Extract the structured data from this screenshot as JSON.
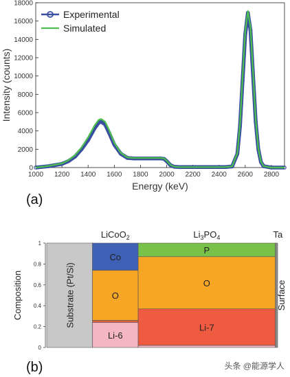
{
  "panel_labels": {
    "a": "(a)",
    "b": "(b)"
  },
  "watermark": "头条 @能源学人",
  "chart_data": [
    {
      "type": "line",
      "xlabel": "Energy (keV)",
      "ylabel": "Intensity (counts)",
      "xlim": [
        1000,
        2900
      ],
      "ylim": [
        0,
        18000
      ],
      "xticks": [
        1000,
        1200,
        1400,
        1600,
        1800,
        2000,
        2200,
        2400,
        2600,
        2800
      ],
      "yticks": [
        0,
        2000,
        4000,
        6000,
        8000,
        10000,
        12000,
        14000,
        16000,
        18000
      ],
      "legend_position": "top-left",
      "series": [
        {
          "name": "Experimental",
          "color": "#3a4fa0",
          "marker": "circle",
          "x": [
            1000,
            1100,
            1200,
            1250,
            1300,
            1350,
            1400,
            1450,
            1480,
            1500,
            1530,
            1560,
            1600,
            1650,
            1700,
            1750,
            1800,
            1850,
            1900,
            1950,
            1980,
            2000,
            2030,
            2060,
            2100,
            2200,
            2300,
            2400,
            2450,
            2500,
            2540,
            2560,
            2580,
            2600,
            2620,
            2640,
            2660,
            2680,
            2700,
            2720,
            2740,
            2800,
            2900
          ],
          "y": [
            0,
            150,
            400,
            700,
            1200,
            2000,
            3000,
            4300,
            4900,
            5000,
            4700,
            3800,
            2500,
            1500,
            1050,
            1000,
            1000,
            1000,
            1000,
            1000,
            950,
            700,
            250,
            80,
            50,
            50,
            50,
            50,
            60,
            120,
            1500,
            4500,
            9500,
            14500,
            16900,
            15000,
            10000,
            5000,
            2000,
            600,
            150,
            0,
            0
          ]
        },
        {
          "name": "Simulated",
          "color": "#4cc04c",
          "x": [
            1000,
            1100,
            1200,
            1250,
            1300,
            1350,
            1400,
            1450,
            1480,
            1500,
            1530,
            1560,
            1600,
            1650,
            1700,
            1750,
            1800,
            1850,
            1900,
            1950,
            1980,
            2000,
            2030,
            2060,
            2100,
            2200,
            2300,
            2400,
            2450,
            2500,
            2540,
            2560,
            2580,
            2600,
            2620,
            2640,
            2660,
            2680,
            2700,
            2720,
            2740,
            2800,
            2900
          ],
          "y": [
            0,
            180,
            450,
            800,
            1350,
            2200,
            3300,
            4600,
            5200,
            5300,
            5000,
            4100,
            2700,
            1600,
            1100,
            1050,
            1050,
            1050,
            1050,
            1050,
            1000,
            750,
            280,
            90,
            50,
            50,
            50,
            50,
            60,
            130,
            1600,
            4700,
            9800,
            14800,
            17100,
            15300,
            10300,
            5200,
            2100,
            650,
            160,
            0,
            0
          ]
        }
      ]
    },
    {
      "type": "stacked-columns",
      "ylabel": "Composition",
      "ylim": [
        0,
        1
      ],
      "yticks": [
        "0",
        "0.2",
        "0.4",
        "0.6",
        "0.8",
        "1"
      ],
      "columns": [
        {
          "header": "",
          "rotated_label": "Substrate (Pt/Si)",
          "width": 1.0,
          "color": "#c8c8c8",
          "segments": [
            {
              "label": "",
              "from": 0,
              "to": 1,
              "color": "#c8c8c8"
            }
          ]
        },
        {
          "header_main": "LiCoO",
          "header_sub": "2",
          "width": 1.0,
          "segments": [
            {
              "label": "Li-6",
              "from": 0,
              "to": 0.24,
              "color": "#f4b6c2"
            },
            {
              "label": "",
              "from": 0.24,
              "to": 0.26,
              "color": "#e06040"
            },
            {
              "label": "O",
              "from": 0.26,
              "to": 0.74,
              "color": "#f7a524"
            },
            {
              "label": "Co",
              "from": 0.74,
              "to": 1.0,
              "color": "#3f61b5"
            }
          ]
        },
        {
          "header_parts": [
            "Li",
            "3",
            "PO",
            "4"
          ],
          "width": 3.0,
          "segments": [
            {
              "label": "",
              "from": 0,
              "to": 0.02,
              "color": "#f4b6c2"
            },
            {
              "label": "Li-7",
              "from": 0.02,
              "to": 0.37,
              "color": "#ef5b40"
            },
            {
              "label": "O",
              "from": 0.37,
              "to": 0.87,
              "color": "#f7a524"
            },
            {
              "label": "P",
              "from": 0.87,
              "to": 1.0,
              "color": "#79c24a"
            }
          ]
        },
        {
          "header": "Ta",
          "rotated_label": "Surface",
          "width": 0.05,
          "color": "#8a8a8a",
          "segments": [
            {
              "label": "",
              "from": 0,
              "to": 1,
              "color": "#8a8a8a"
            }
          ]
        }
      ]
    }
  ]
}
